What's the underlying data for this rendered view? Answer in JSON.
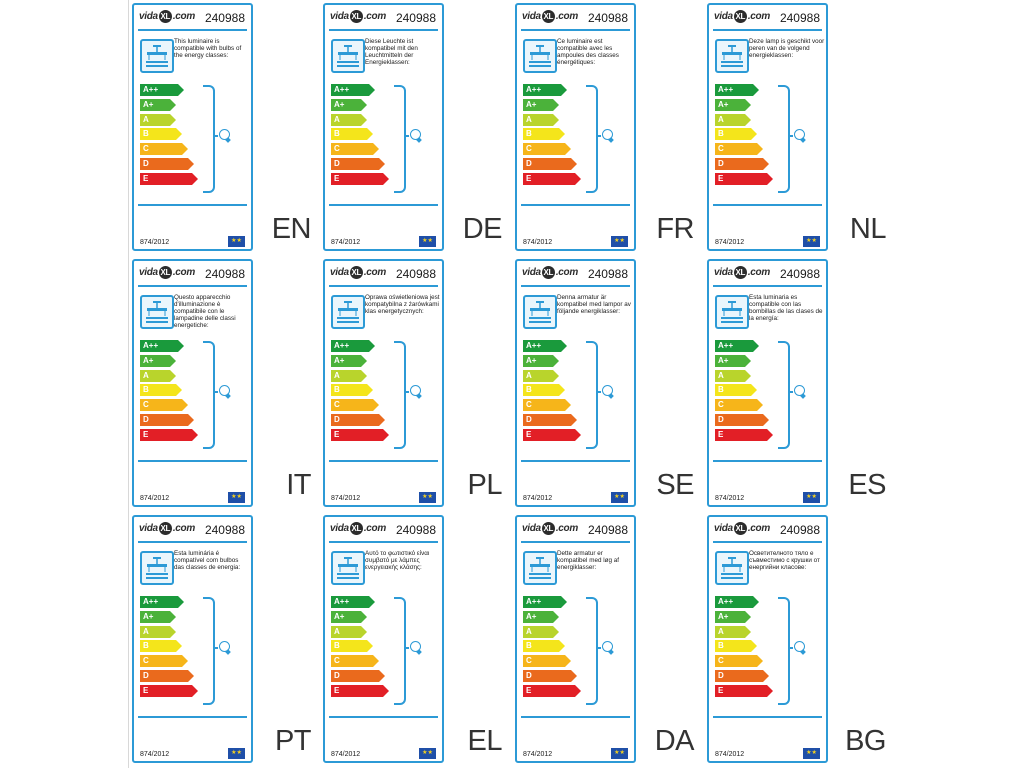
{
  "brand": {
    "prefix": "vida",
    "mark": "XL",
    "suffix": ".com"
  },
  "product_code": "240988",
  "regulation": "874/2012",
  "eu_flag_icon": "eu-flag-icon",
  "energy_classes": [
    {
      "label": "A++",
      "color": "#1a9a3c"
    },
    {
      "label": "A+",
      "color": "#4bb23a"
    },
    {
      "label": "A",
      "color": "#b9d42c"
    },
    {
      "label": "B",
      "color": "#f4e51b"
    },
    {
      "label": "C",
      "color": "#f6b51a"
    },
    {
      "label": "D",
      "color": "#ea6a1d"
    },
    {
      "label": "E",
      "color": "#e21f26"
    }
  ],
  "accent_color": "#2c9ad6",
  "labels": [
    {
      "lang": "EN",
      "text": "This luminaire is compatible with bulbs of the energy classes:"
    },
    {
      "lang": "DE",
      "text": "Diese Leuchte ist kompatibel mit den Leuchtmitteln der Energieklassen:"
    },
    {
      "lang": "FR",
      "text": "Ce luminaire est compatible avec les ampoules des classes énergétiques:"
    },
    {
      "lang": "NL",
      "text": "Deze lamp is geschikt voor peren van de volgend energieklassen:"
    },
    {
      "lang": "IT",
      "text": "Questo apparecchio d'illuminazione è compatibile con le lampadine delle classi energetiche:"
    },
    {
      "lang": "PL",
      "text": "Oprawa oświetleniowa jest kompatybilna z żarówkami klas energetycznych:"
    },
    {
      "lang": "SE",
      "text": "Denna armatur är kompatibel med lampor av följande energiklasser:"
    },
    {
      "lang": "ES",
      "text": "Esta luminaria es compatible con las bombillas de las clases de la energía:"
    },
    {
      "lang": "PT",
      "text": "Esta luminária é compatível com bulbos das classes de energia:"
    },
    {
      "lang": "EL",
      "text": "Αυτό το φωτιστικό είναι συμβατό με λάμπες ενεργειακής κλάσης:"
    },
    {
      "lang": "DA",
      "text": "Dette armatur er kompatibel med løg af energiklasser:"
    },
    {
      "lang": "BG",
      "text": "Осветителното тяло е съвместимо с крушки от енергийни класове:"
    }
  ]
}
